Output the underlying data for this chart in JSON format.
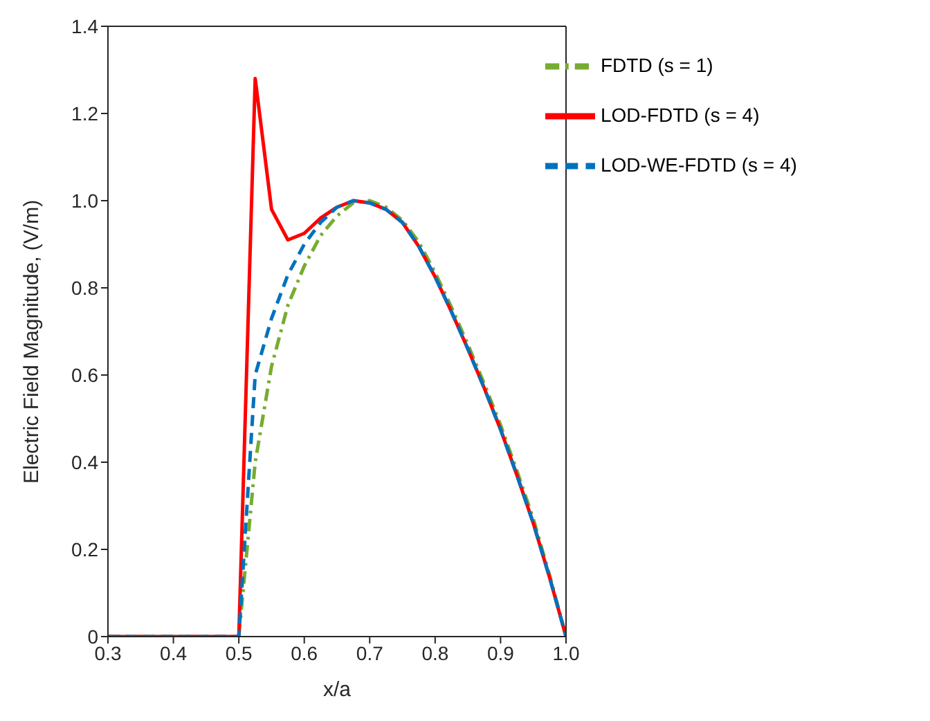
{
  "chart_data": {
    "type": "line",
    "xlabel": "x/a",
    "ylabel": "Electric Field Magnitude, (V/m)",
    "xlim": [
      0.3,
      1.0
    ],
    "xticks": [
      0.3,
      0.4,
      0.5,
      0.6,
      0.7,
      0.8,
      0.9,
      {
        "value": 1.0,
        "label": "1.0"
      }
    ],
    "ylim": [
      0,
      1.4
    ],
    "yticks": [
      0,
      0.2,
      0.4,
      0.6,
      0.8,
      {
        "value": 1.0,
        "label": "1.0"
      },
      1.2,
      1.4
    ],
    "grid": false,
    "legend": "top right",
    "marker": "none",
    "series": [
      {
        "name": "LOD-WE-FDTD (s = 4)",
        "color": "#0072bd",
        "line_style": "dashed",
        "x": [
          0.3,
          0.5,
          0.525,
          0.55,
          0.575,
          0.6,
          0.625,
          0.65,
          0.675,
          0.7,
          0.725,
          0.75,
          0.775,
          0.8,
          0.825,
          0.85,
          0.875,
          0.9,
          0.925,
          0.95,
          0.975,
          1.0
        ],
        "values": [
          0,
          0,
          0.6,
          0.73,
          0.83,
          0.9,
          0.95,
          0.985,
          1.0,
          0.995,
          0.98,
          0.95,
          0.895,
          0.825,
          0.745,
          0.66,
          0.57,
          0.475,
          0.37,
          0.26,
          0.135,
          0
        ]
      },
      {
        "name": "LOD-FDTD (s = 4)",
        "color": "#ff0000",
        "line_style": "solid",
        "x": [
          0.3,
          0.5,
          0.525,
          0.55,
          0.575,
          0.6,
          0.625,
          0.65,
          0.675,
          0.7,
          0.725,
          0.75,
          0.775,
          0.8,
          0.825,
          0.85,
          0.875,
          0.9,
          0.925,
          0.95,
          0.975,
          1.0
        ],
        "values": [
          0,
          0,
          1.28,
          0.98,
          0.91,
          0.925,
          0.96,
          0.985,
          1.0,
          0.995,
          0.98,
          0.95,
          0.895,
          0.825,
          0.745,
          0.66,
          0.57,
          0.475,
          0.37,
          0.26,
          0.135,
          0
        ]
      },
      {
        "name": "FDTD (s = 1)",
        "color": "#77ac30",
        "line_style": "dashdot",
        "x": [
          0.3,
          0.5,
          0.525,
          0.55,
          0.575,
          0.6,
          0.625,
          0.65,
          0.675,
          0.7,
          0.725,
          0.75,
          0.775,
          0.8,
          0.825,
          0.85,
          0.875,
          0.9,
          0.925,
          0.95,
          0.975,
          1.0
        ],
        "values": [
          0,
          0,
          0.4,
          0.62,
          0.76,
          0.85,
          0.92,
          0.965,
          0.995,
          1.0,
          0.985,
          0.955,
          0.905,
          0.835,
          0.755,
          0.67,
          0.58,
          0.485,
          0.38,
          0.27,
          0.14,
          0
        ]
      }
    ]
  }
}
